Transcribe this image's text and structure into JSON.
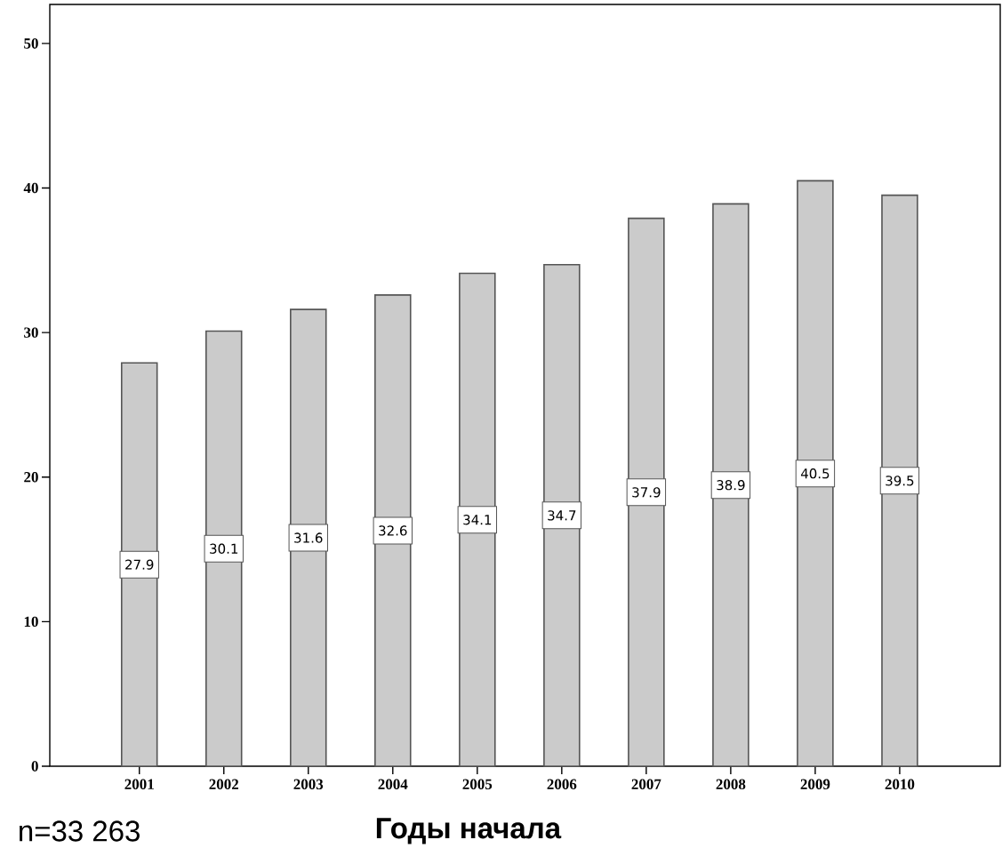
{
  "chart_data": {
    "type": "bar",
    "xlabel": "Годы начала",
    "categories": [
      "2001",
      "2002",
      "2003",
      "2004",
      "2005",
      "2006",
      "2007",
      "2008",
      "2009",
      "2010"
    ],
    "values": [
      27.9,
      30.1,
      31.6,
      32.6,
      34.1,
      34.7,
      37.9,
      38.9,
      40.5,
      39.5
    ],
    "color": "#cbcbcb",
    "ylim": [
      0,
      52.7
    ],
    "yticks": [
      0,
      10,
      20,
      30,
      40,
      50
    ],
    "data_labels": true,
    "annotations": [
      "n=33 263"
    ]
  }
}
